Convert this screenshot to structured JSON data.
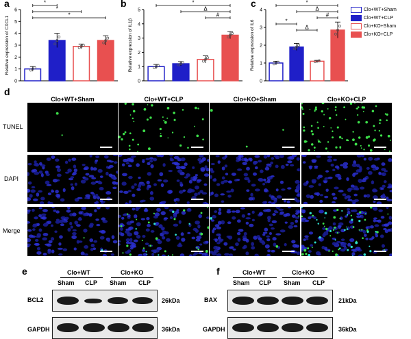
{
  "figure": {
    "panel_letters": [
      "a",
      "b",
      "c",
      "d",
      "e",
      "f"
    ],
    "legend": [
      {
        "name": "Clo+WT+Sham",
        "color": "#1f1fc8",
        "filled": false
      },
      {
        "name": "Clo+WT+CLP",
        "color": "#1f1fc8",
        "filled": true
      },
      {
        "name": "Clo+KO+Sham",
        "color": "#e85050",
        "filled": false
      },
      {
        "name": "Clo+KO+CLP",
        "color": "#e85050",
        "filled": true
      }
    ]
  },
  "chart_data": [
    {
      "panel": "a",
      "type": "bar",
      "categories": [
        "Clo+WT+Sham",
        "Clo+WT+CLP",
        "Clo+KO+Sham",
        "Clo+KO+CLP"
      ],
      "values": [
        1.0,
        3.4,
        2.9,
        3.4
      ],
      "errors": [
        0.2,
        0.6,
        0.2,
        0.4
      ],
      "ylabel": "Relative expression of CXCL1",
      "ylim": [
        0,
        6
      ],
      "yticks": [
        "0",
        "1",
        "2",
        "3",
        "4",
        "5",
        "6"
      ],
      "significance": [
        {
          "from": 0,
          "to": 1,
          "label": "*"
        },
        {
          "from": 0,
          "to": 2,
          "label": "*"
        },
        {
          "from": 0,
          "to": 3,
          "label": "*"
        }
      ]
    },
    {
      "panel": "b",
      "type": "bar",
      "categories": [
        "Clo+WT+Sham",
        "Clo+WT+CLP",
        "Clo+KO+Sham",
        "Clo+KO+CLP"
      ],
      "values": [
        1.0,
        1.2,
        1.5,
        3.2
      ],
      "errors": [
        0.15,
        0.15,
        0.25,
        0.25
      ],
      "ylabel": "Relative expression of IL1β",
      "ylim": [
        0,
        5
      ],
      "yticks": [
        "0",
        "1",
        "2",
        "3",
        "4",
        "5"
      ],
      "significance": [
        {
          "from": 0,
          "to": 3,
          "label": "*"
        },
        {
          "from": 1,
          "to": 3,
          "label": "Δ"
        },
        {
          "from": 2,
          "to": 3,
          "label": "#"
        }
      ]
    },
    {
      "panel": "c",
      "type": "bar",
      "categories": [
        "Clo+WT+Sham",
        "Clo+WT+CLP",
        "Clo+KO+Sham",
        "Clo+KO+CLP"
      ],
      "values": [
        1.0,
        1.9,
        1.1,
        2.85
      ],
      "errors": [
        0.1,
        0.2,
        0.05,
        0.45
      ],
      "ylabel": "Relative expression of IL6",
      "ylim": [
        0,
        4
      ],
      "yticks": [
        "0",
        "1",
        "2",
        "3",
        "4"
      ],
      "significance": [
        {
          "from": 0,
          "to": 3,
          "label": "*"
        },
        {
          "from": 1,
          "to": 3,
          "label": "Δ"
        },
        {
          "from": 2,
          "to": 3,
          "label": "#"
        },
        {
          "from": 0,
          "to": 1,
          "label": "*"
        },
        {
          "from": 1,
          "to": 2,
          "label": "Δ"
        }
      ]
    }
  ],
  "microscopy": {
    "columns": [
      "Clo+WT+Sham",
      "Clo+WT+CLP",
      "Clo+KO+Sham",
      "Clo+KO+CLP"
    ],
    "rows": [
      "TUNEL",
      "DAPI",
      "Merge"
    ]
  },
  "western": {
    "e": {
      "groups": [
        "Clo+WT",
        "Clo+KO"
      ],
      "lanes": [
        "Sham",
        "CLP",
        "Sham",
        "CLP"
      ],
      "rows": [
        {
          "label": "BCL2",
          "size": "26kDa"
        },
        {
          "label": "GAPDH",
          "size": "36kDa"
        }
      ]
    },
    "f": {
      "groups": [
        "Clo+WT",
        "Clo+KO"
      ],
      "lanes": [
        "Sham",
        "CLP",
        "Sham",
        "CLP"
      ],
      "rows": [
        {
          "label": "BAX",
          "size": "21kDa"
        },
        {
          "label": "GAPDH",
          "size": "36kDa"
        }
      ]
    }
  }
}
